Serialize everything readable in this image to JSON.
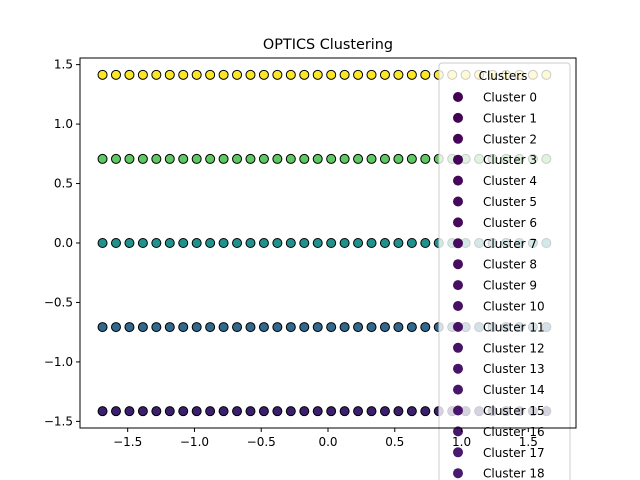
{
  "chart_data": {
    "type": "scatter",
    "title": "OPTICS Clustering",
    "xlabel": "",
    "ylabel": "",
    "xlim": [
      -1.857,
      1.857
    ],
    "ylim": [
      -1.5556,
      1.5556
    ],
    "xticks": [
      -1.5,
      -1.0,
      -0.5,
      0.0,
      0.5,
      1.0,
      1.5
    ],
    "xtick_labels": [
      "−1.5",
      "−1.0",
      "−0.5",
      "0.0",
      "0.5",
      "1.0",
      "1.5"
    ],
    "yticks": [
      -1.5,
      -1.0,
      -0.5,
      0.0,
      0.5,
      1.0,
      1.5
    ],
    "ytick_labels": [
      "−1.5",
      "−1.0",
      "−0.5",
      "0.0",
      "0.5",
      "1.0",
      "1.5"
    ],
    "grid": false,
    "colormap": "viridis",
    "point_edge_color": "#000000",
    "x_values": [
      -1.6882,
      -1.5875,
      -1.4868,
      -1.3861,
      -1.2854,
      -1.1847,
      -1.084,
      -0.9833,
      -0.8826,
      -0.7819,
      -0.6812,
      -0.5805,
      -0.4798,
      -0.3791,
      -0.2784,
      -0.1777,
      -0.077,
      0.0237,
      0.1244,
      0.2251,
      0.3258,
      0.4265,
      0.5272,
      0.6279,
      0.7286,
      0.8293,
      0.93,
      1.0307,
      1.1314,
      1.2321,
      1.3328,
      1.4335,
      1.5342,
      1.6349
    ],
    "rows": [
      {
        "y": 1.4142,
        "color": "#fde725"
      },
      {
        "y": 0.7071,
        "color": "#5ec962"
      },
      {
        "y": 0.0,
        "color": "#21918c"
      },
      {
        "y": -0.7071,
        "color": "#31688e"
      },
      {
        "y": -1.4142,
        "color": "#3b1f6e"
      }
    ],
    "legend": {
      "title": "Clusters",
      "location": "upper right",
      "entries": [
        {
          "label": "Cluster 0",
          "color": "#440154"
        },
        {
          "label": "Cluster 1",
          "color": "#440256"
        },
        {
          "label": "Cluster 2",
          "color": "#450457"
        },
        {
          "label": "Cluster 3",
          "color": "#450559"
        },
        {
          "label": "Cluster 4",
          "color": "#46075a"
        },
        {
          "label": "Cluster 5",
          "color": "#46085c"
        },
        {
          "label": "Cluster 6",
          "color": "#460a5d"
        },
        {
          "label": "Cluster 7",
          "color": "#460b5e"
        },
        {
          "label": "Cluster 8",
          "color": "#470d60"
        },
        {
          "label": "Cluster 9",
          "color": "#470e61"
        },
        {
          "label": "Cluster 10",
          "color": "#471063"
        },
        {
          "label": "Cluster 11",
          "color": "#471164"
        },
        {
          "label": "Cluster 12",
          "color": "#471365"
        },
        {
          "label": "Cluster 13",
          "color": "#481467"
        },
        {
          "label": "Cluster 14",
          "color": "#481668"
        },
        {
          "label": "Cluster 15",
          "color": "#481769"
        },
        {
          "label": "Cluster 16",
          "color": "#48186a"
        },
        {
          "label": "Cluster 17",
          "color": "#481a6c"
        },
        {
          "label": "Cluster 18",
          "color": "#481b6d"
        }
      ]
    }
  }
}
